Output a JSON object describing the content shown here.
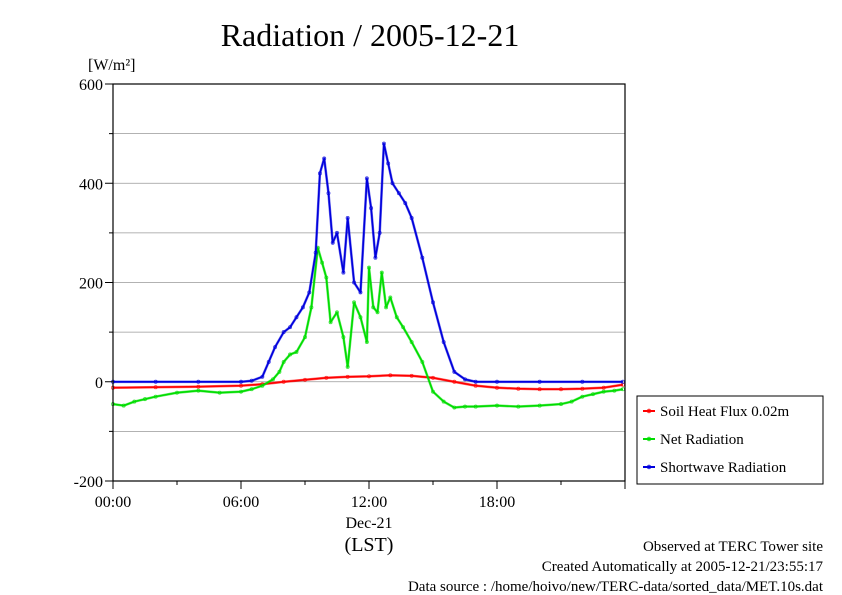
{
  "chart_data": {
    "type": "line",
    "title": "Radiation / 2005-12-21",
    "ylabel_unit": "[W/m²]",
    "xlabel_date": "Dec-21",
    "xlabel_tz": "(LST)",
    "ylim": [
      -200,
      600
    ],
    "xlim_hours": [
      0,
      24
    ],
    "y_ticks": [
      -200,
      0,
      200,
      400,
      600
    ],
    "y_tick_labels": [
      "-200",
      "0",
      "200",
      "400",
      "600"
    ],
    "x_ticks_hours": [
      0,
      6,
      12,
      18
    ],
    "x_tick_labels": [
      "00:00",
      "06:00",
      "12:00",
      "18:00"
    ],
    "grid": true,
    "legend_position": "right",
    "series": [
      {
        "name": "Soil Heat Flux 0.02m",
        "color": "#ff0000",
        "x": [
          0,
          2,
          4,
          6,
          7,
          8,
          9,
          10,
          11,
          12,
          13,
          14,
          15,
          16,
          17,
          18,
          19,
          20,
          21,
          22,
          23,
          23.9
        ],
        "y": [
          -12,
          -11,
          -10,
          -8,
          -5,
          0,
          4,
          8,
          10,
          11,
          13,
          12,
          8,
          0,
          -8,
          -12,
          -14,
          -15,
          -15,
          -14,
          -12,
          -6
        ]
      },
      {
        "name": "Net Radiation",
        "color": "#00dd00",
        "x": [
          0,
          0.5,
          1,
          1.5,
          2,
          3,
          4,
          5,
          6,
          6.5,
          7,
          7.5,
          7.8,
          8,
          8.3,
          8.6,
          9,
          9.3,
          9.6,
          9.8,
          10,
          10.2,
          10.5,
          10.8,
          11,
          11.3,
          11.6,
          11.9,
          12,
          12.2,
          12.4,
          12.6,
          12.8,
          13,
          13.3,
          13.6,
          14,
          14.5,
          15,
          15.5,
          16,
          16.5,
          17,
          18,
          19,
          20,
          21,
          21.5,
          22,
          22.5,
          23,
          23.5,
          23.9
        ],
        "y": [
          -45,
          -48,
          -40,
          -35,
          -30,
          -22,
          -18,
          -22,
          -20,
          -15,
          -8,
          5,
          20,
          40,
          55,
          60,
          90,
          150,
          270,
          240,
          210,
          120,
          140,
          90,
          30,
          160,
          130,
          80,
          230,
          150,
          140,
          220,
          150,
          170,
          130,
          110,
          80,
          40,
          -20,
          -40,
          -52,
          -50,
          -50,
          -48,
          -50,
          -48,
          -45,
          -40,
          -30,
          -25,
          -20,
          -18,
          -15
        ]
      },
      {
        "name": "Shortwave Radiation",
        "color": "#0000dd",
        "x": [
          0,
          2,
          4,
          6,
          6.5,
          7,
          7.3,
          7.6,
          8,
          8.3,
          8.6,
          8.9,
          9.2,
          9.5,
          9.7,
          9.9,
          10.1,
          10.3,
          10.5,
          10.8,
          11,
          11.3,
          11.6,
          11.9,
          12.1,
          12.3,
          12.5,
          12.7,
          12.9,
          13.1,
          13.4,
          13.7,
          14,
          14.5,
          15,
          15.5,
          16,
          16.5,
          17,
          18,
          20,
          22,
          23.9
        ],
        "y": [
          0,
          0,
          0,
          0,
          2,
          10,
          40,
          70,
          100,
          110,
          130,
          150,
          180,
          260,
          420,
          450,
          380,
          280,
          300,
          220,
          330,
          200,
          180,
          410,
          350,
          250,
          300,
          480,
          440,
          400,
          380,
          360,
          330,
          250,
          160,
          80,
          20,
          5,
          0,
          0,
          0,
          0,
          0
        ]
      }
    ]
  },
  "footer": {
    "site": "Observed at TERC Tower site",
    "created": "Created Automatically at 2005-12-21/23:55:17",
    "source": "Data source : /home/hoivo/new/TERC-data/sorted_data/MET.10s.dat"
  }
}
